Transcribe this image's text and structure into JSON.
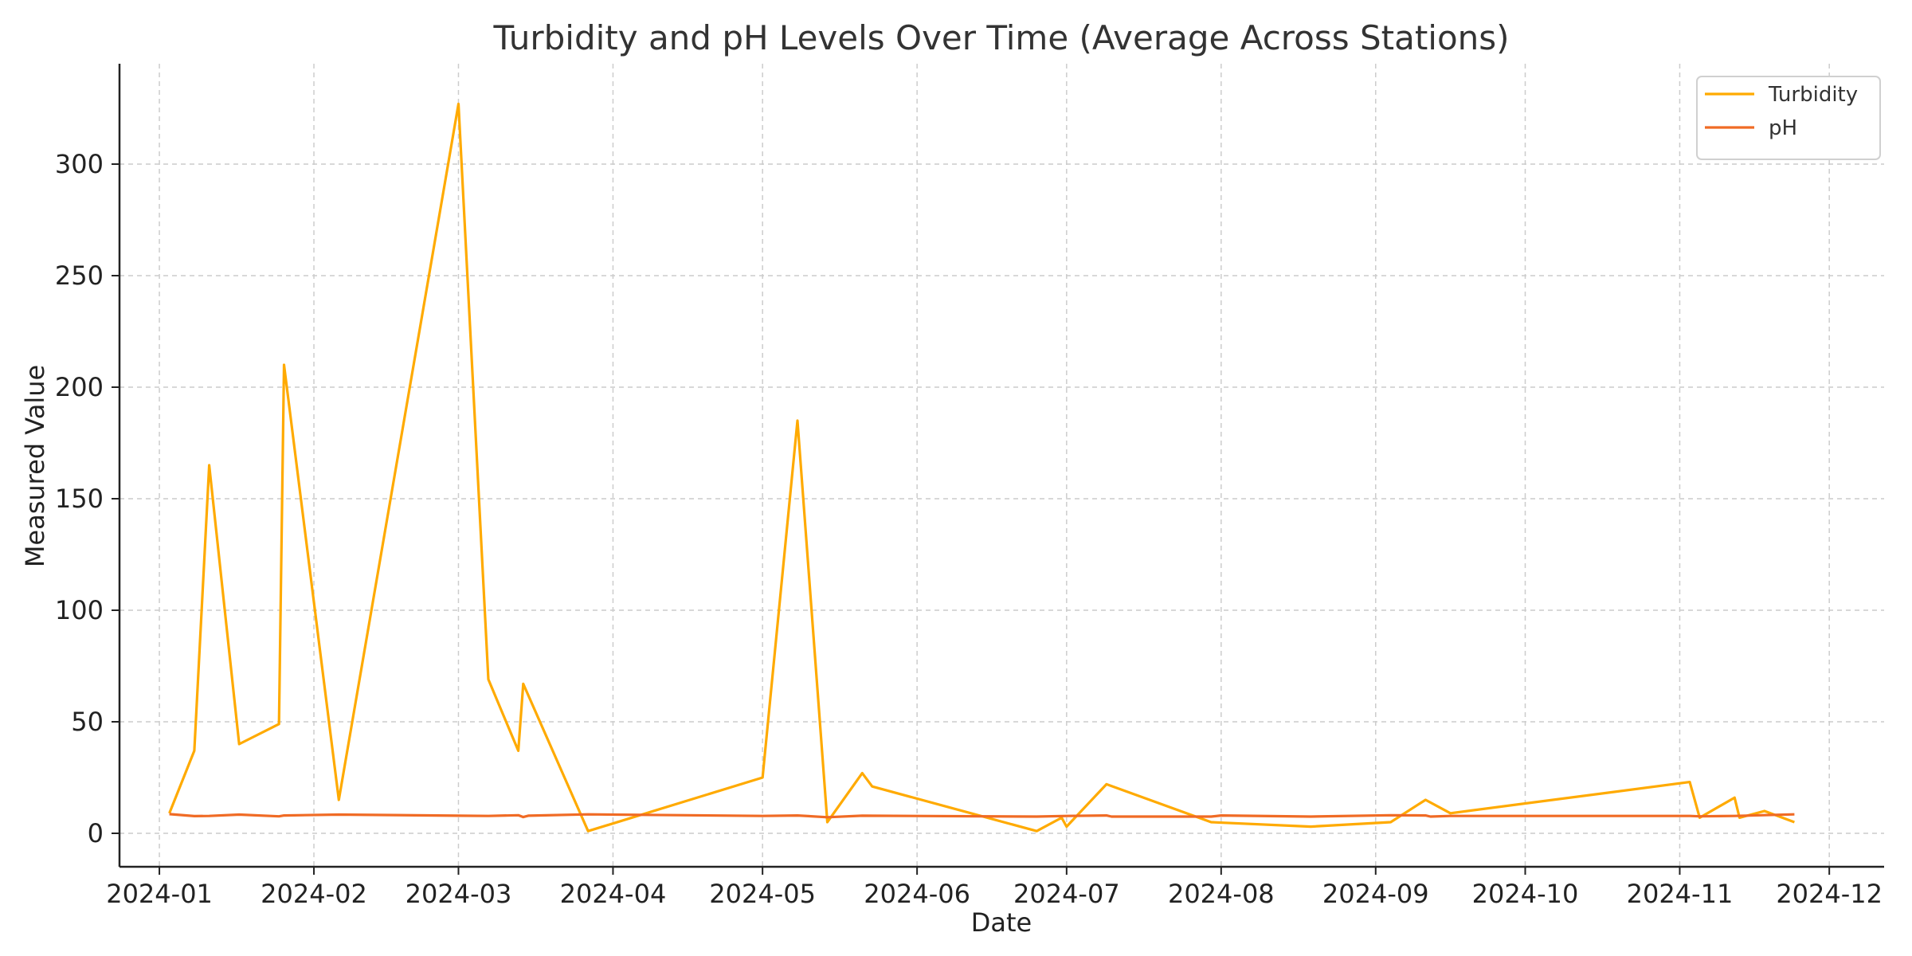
{
  "chart_data": {
    "type": "line",
    "title": "Turbidity and pH Levels Over Time (Average Across Stations)",
    "xlabel": "Date",
    "ylabel": "Measured Value",
    "xlim": [
      "2023-12-24",
      "2024-12-12"
    ],
    "ylim": [
      -15,
      345
    ],
    "grid": true,
    "legend_position": "top-right",
    "x_ticks": [
      "2024-01",
      "2024-02",
      "2024-03",
      "2024-04",
      "2024-05",
      "2024-06",
      "2024-07",
      "2024-08",
      "2024-09",
      "2024-10",
      "2024-11",
      "2024-12"
    ],
    "y_ticks": [
      0,
      50,
      100,
      150,
      200,
      250,
      300
    ],
    "series": [
      {
        "name": "Turbidity",
        "color": "#FFAA00",
        "points": [
          [
            "2024-01-03",
            9
          ],
          [
            "2024-01-08",
            37
          ],
          [
            "2024-01-11",
            165
          ],
          [
            "2024-01-17",
            40
          ],
          [
            "2024-01-25",
            49
          ],
          [
            "2024-01-26",
            210
          ],
          [
            "2024-02-06",
            15
          ],
          [
            "2024-03-01",
            327
          ],
          [
            "2024-03-07",
            69
          ],
          [
            "2024-03-13",
            37
          ],
          [
            "2024-03-14",
            67
          ],
          [
            "2024-03-27",
            1
          ],
          [
            "2024-05-01",
            25
          ],
          [
            "2024-05-08",
            185
          ],
          [
            "2024-05-14",
            5
          ],
          [
            "2024-05-21",
            27
          ],
          [
            "2024-05-23",
            21
          ],
          [
            "2024-06-25",
            1
          ],
          [
            "2024-06-30",
            7
          ],
          [
            "2024-07-01",
            3
          ],
          [
            "2024-07-09",
            22
          ],
          [
            "2024-07-30",
            5
          ],
          [
            "2024-08-19",
            3
          ],
          [
            "2024-09-04",
            5
          ],
          [
            "2024-09-11",
            15
          ],
          [
            "2024-09-16",
            9
          ],
          [
            "2024-11-03",
            23
          ],
          [
            "2024-11-05",
            7
          ],
          [
            "2024-11-12",
            16
          ],
          [
            "2024-11-13",
            7
          ],
          [
            "2024-11-18",
            10
          ],
          [
            "2024-11-24",
            5
          ]
        ]
      },
      {
        "name": "pH",
        "color": "#F06B25",
        "points": [
          [
            "2024-01-03",
            8.6
          ],
          [
            "2024-01-08",
            7.7
          ],
          [
            "2024-01-11",
            7.8
          ],
          [
            "2024-01-17",
            8.4
          ],
          [
            "2024-01-25",
            7.6
          ],
          [
            "2024-01-26",
            8.0
          ],
          [
            "2024-02-06",
            8.4
          ],
          [
            "2024-03-01",
            7.9
          ],
          [
            "2024-03-07",
            7.8
          ],
          [
            "2024-03-13",
            8.1
          ],
          [
            "2024-03-14",
            7.3
          ],
          [
            "2024-03-15",
            7.9
          ],
          [
            "2024-03-27",
            8.5
          ],
          [
            "2024-05-01",
            7.8
          ],
          [
            "2024-05-08",
            8.0
          ],
          [
            "2024-05-14",
            7.2
          ],
          [
            "2024-05-21",
            7.9
          ],
          [
            "2024-06-25",
            7.5
          ],
          [
            "2024-07-01",
            7.8
          ],
          [
            "2024-07-09",
            8.0
          ],
          [
            "2024-07-10",
            7.5
          ],
          [
            "2024-07-30",
            7.5
          ],
          [
            "2024-08-01",
            8.0
          ],
          [
            "2024-08-19",
            7.5
          ],
          [
            "2024-09-04",
            8.1
          ],
          [
            "2024-09-11",
            8.0
          ],
          [
            "2024-09-12",
            7.5
          ],
          [
            "2024-09-16",
            7.8
          ],
          [
            "2024-11-03",
            7.8
          ],
          [
            "2024-11-05",
            7.6
          ],
          [
            "2024-11-12",
            7.8
          ],
          [
            "2024-11-24",
            8.5
          ]
        ]
      }
    ]
  }
}
